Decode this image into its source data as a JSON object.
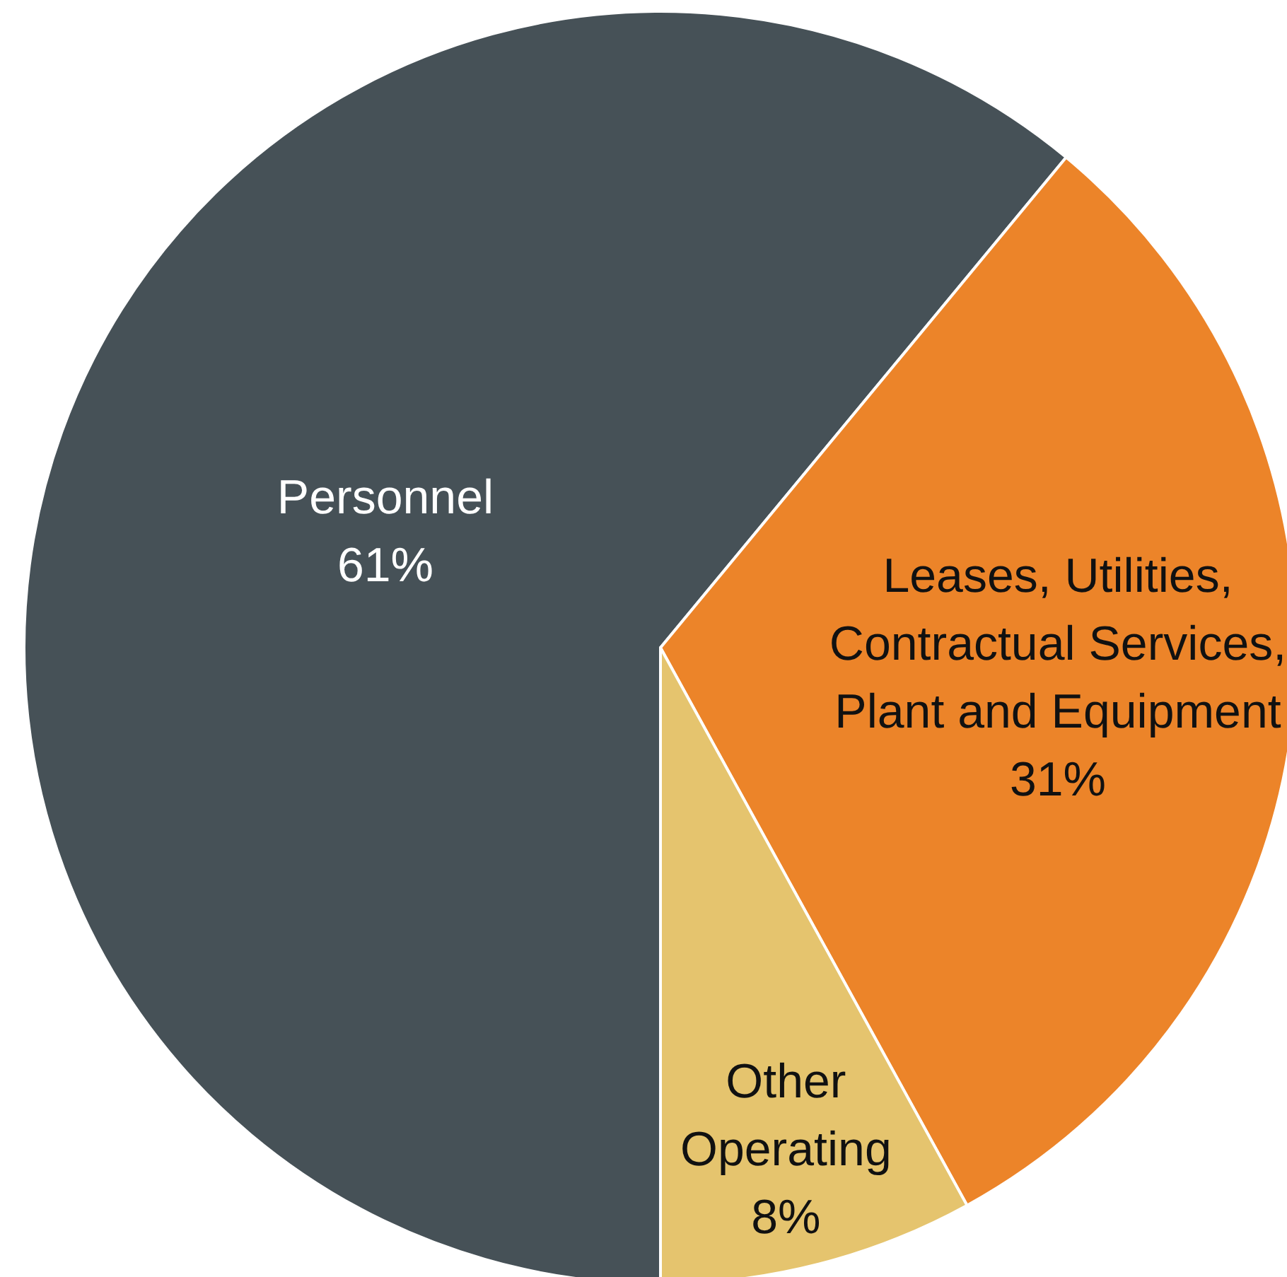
{
  "chart_data": {
    "type": "pie",
    "categories": [
      "Personnel",
      "Leases, Utilities,\nContractual Services,\nPlant and Equipment",
      "Other\nOperating"
    ],
    "values": [
      61,
      31,
      8
    ],
    "colors": [
      "#465157",
      "#ec8429",
      "#e5c46e"
    ],
    "value_labels": [
      "61%",
      "31%",
      "8%"
    ],
    "legend": false
  }
}
